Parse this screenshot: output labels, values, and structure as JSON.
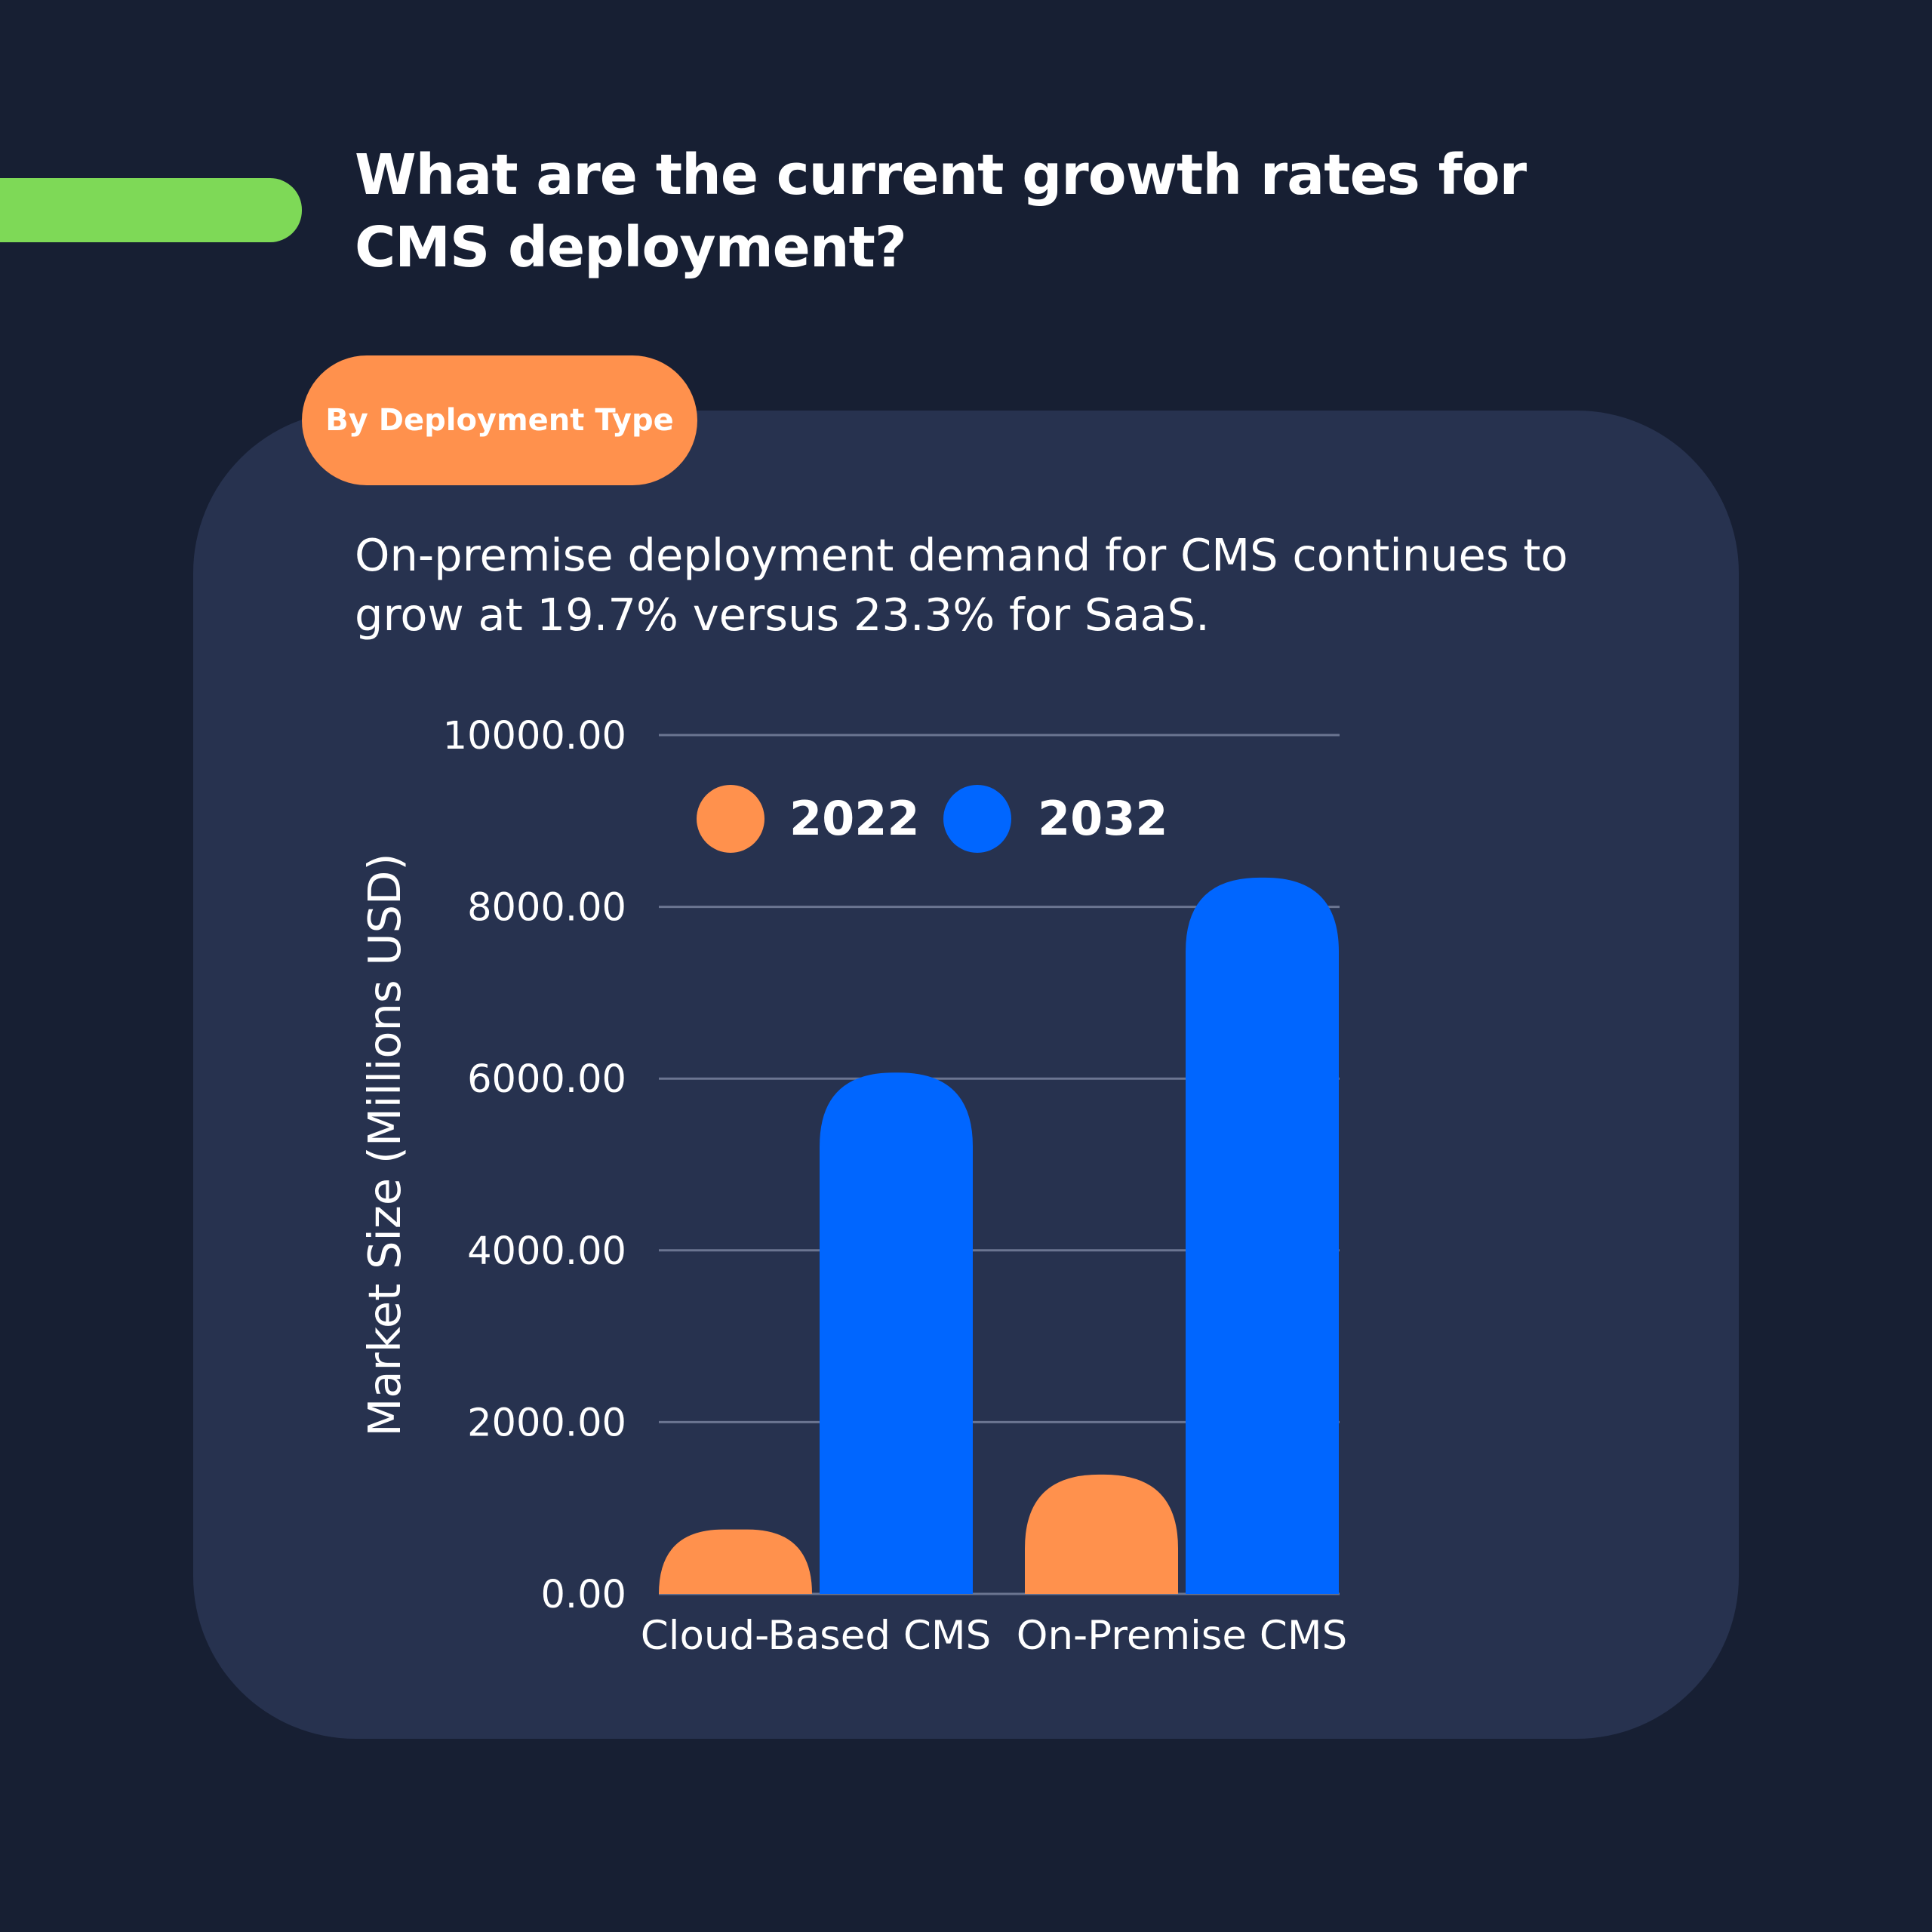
{
  "header": {
    "title": "What are the current growth rates for CMS deployment?"
  },
  "section": {
    "pill_label": "By Deployment Type",
    "summary": "On-premise deployment demand for CMS continues to grow at 19.7% versus 23.3% for SaaS."
  },
  "colors": {
    "background": "#171f33",
    "card": "#27324f",
    "accent_green": "#7ed957",
    "orange": "#ff914d",
    "blue": "#0066ff",
    "grid": "#6b7591",
    "text": "#ffffff"
  },
  "chart_data": {
    "type": "bar",
    "title": "",
    "xlabel": "",
    "ylabel": "Market Size (Millions USD)",
    "categories": [
      "Cloud-Based CMS",
      "On-Premise CMS"
    ],
    "series": [
      {
        "name": "2022",
        "values": [
          750,
          1390
        ]
      },
      {
        "name": "2032",
        "values": [
          6070,
          8340
        ]
      }
    ],
    "ylim": [
      0,
      10000
    ],
    "yticks": [
      0,
      2000,
      4000,
      6000,
      8000,
      10000
    ],
    "ytick_labels": [
      "0.00",
      "2000.00",
      "4000.00",
      "6000.00",
      "8000.00",
      "10000.00"
    ],
    "grid": true,
    "legend_position": "top-left"
  }
}
